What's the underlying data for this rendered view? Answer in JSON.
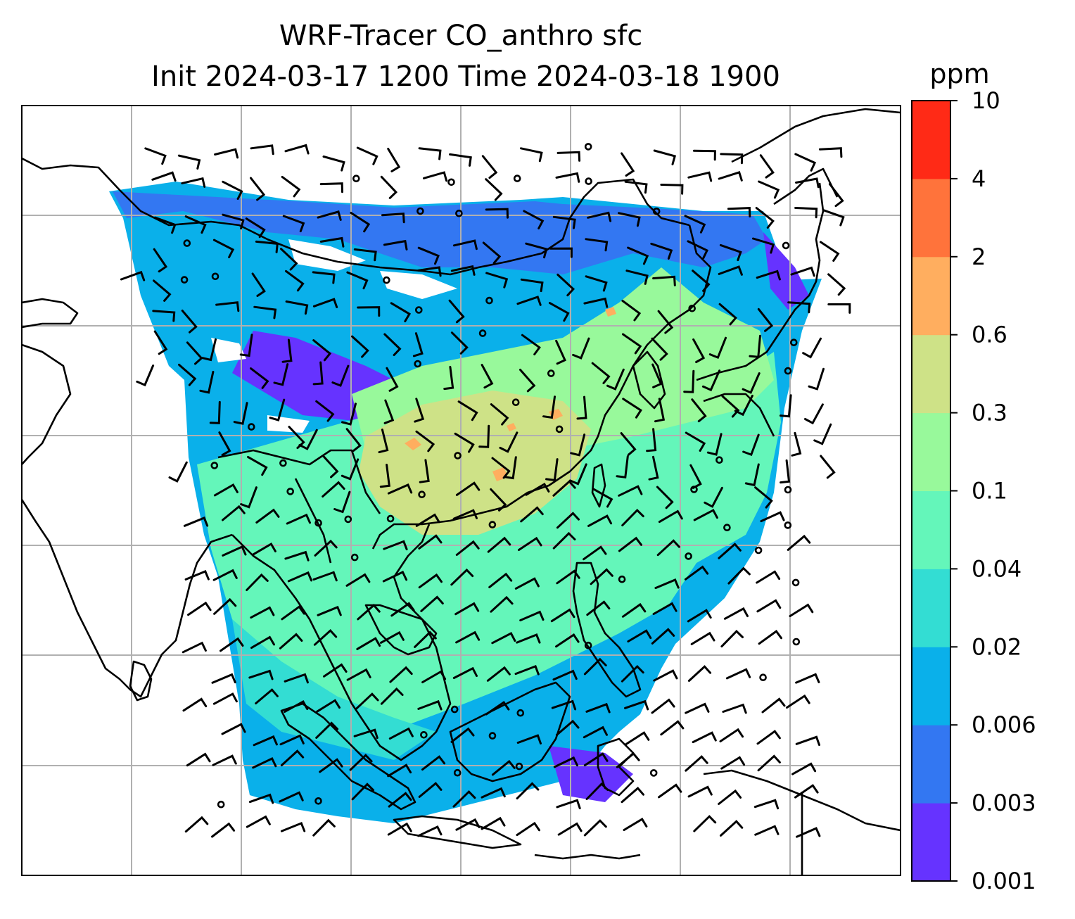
{
  "title": {
    "line1": "WRF-Tracer CO_anthro sfc",
    "line2": "Init 2024-03-17 1200 Time 2024-03-18 1900"
  },
  "colorbar": {
    "unit": "ppm",
    "levels": [
      "0.001",
      "0.003",
      "0.006",
      "0.02",
      "0.04",
      "0.1",
      "0.3",
      "0.6",
      "2",
      "4",
      "10"
    ],
    "colors": [
      "#6633ff",
      "#3377f2",
      "#0ab0ea",
      "#33ddd3",
      "#64f6ba",
      "#98f99b",
      "#cee287",
      "#ffae5f",
      "#ff733b",
      "#ff2a16"
    ]
  },
  "map": {
    "gridlines": true,
    "grid_color": "#b0b0b0",
    "coastline_color": "#000000",
    "no_data_color": "#ffffff",
    "field": "CO_anthro surface concentration",
    "overlay": "wind barbs"
  }
}
